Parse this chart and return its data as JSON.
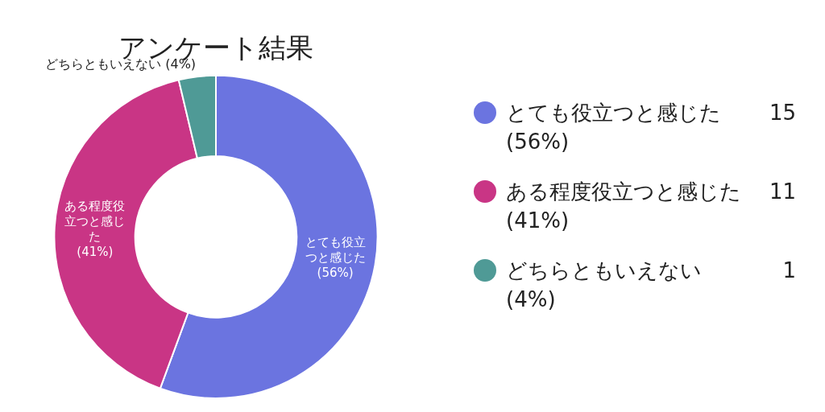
{
  "chart_data": {
    "type": "donut",
    "title": "アンケート結果",
    "categories": [
      "とても役立つと感じた",
      "ある程度役立つと感じた",
      "どちらともいえない"
    ],
    "values": [
      55.6,
      40.7,
      3.7
    ],
    "annotations": [
      "15",
      "11",
      "1"
    ],
    "value_labels": [
      "(56%)",
      "(41%)",
      "(4%)"
    ],
    "colors": [
      "#6b74e0",
      "#c93585",
      "#4f9a96"
    ],
    "legend": "right"
  }
}
